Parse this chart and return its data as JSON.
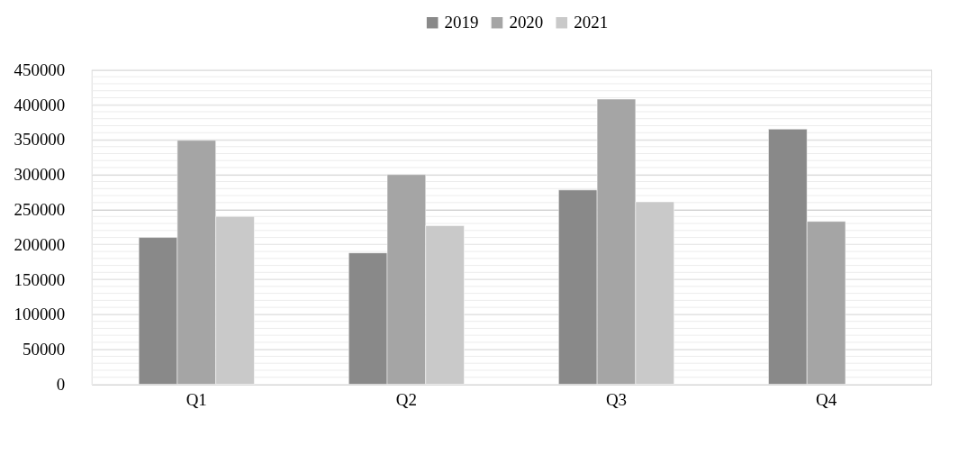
{
  "chart_data": {
    "type": "bar",
    "categories": [
      "Q1",
      "Q2",
      "Q3",
      "Q4"
    ],
    "series": [
      {
        "name": "2019",
        "color": "#898989",
        "values": [
          210000,
          188000,
          278000,
          365000
        ]
      },
      {
        "name": "2020",
        "color": "#a5a5a5",
        "values": [
          349000,
          300000,
          408000,
          233000
        ]
      },
      {
        "name": "2021",
        "color": "#c9c9c9",
        "values": [
          240000,
          227000,
          261000,
          null
        ]
      }
    ],
    "ylim": [
      0,
      450000
    ],
    "yticks": [
      0,
      50000,
      100000,
      150000,
      200000,
      250000,
      300000,
      350000,
      400000,
      450000
    ],
    "grid": "y",
    "legend": "top"
  }
}
